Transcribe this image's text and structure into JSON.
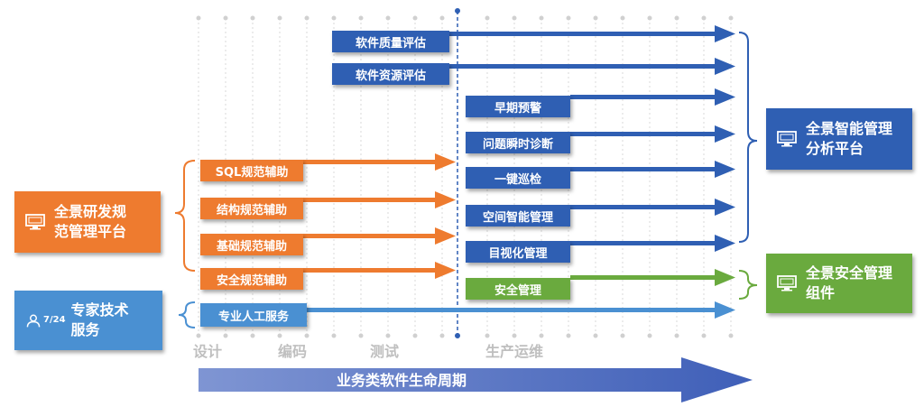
{
  "phases": [
    "设计",
    "编码",
    "测试",
    "生产运维"
  ],
  "lifecycle_label": "业务类软件生命周期",
  "top_items": [
    "软件质量评估",
    "软件资源评估"
  ],
  "ops_items": [
    "早期预警",
    "问题瞬时诊断",
    "一键巡检",
    "空间智能管理",
    "目视化管理"
  ],
  "security_item": "安全管理",
  "dev_items": [
    "SQL规范辅助",
    "结构规范辅助",
    "基础规范辅助",
    "安全规范辅助"
  ],
  "service_item": "专业人工服务",
  "left_platform": "全景研发规\n范管理平台",
  "expert_service": "专家技术\n服务",
  "expert_badge": "7/24",
  "right_platform": "全景智能管理\n分析平台",
  "right_component": "全景安全管理\n组件",
  "colors": {
    "blue": "#2f5fb3",
    "orange": "#ee7b2f",
    "green": "#6aaa3e",
    "light_blue": "#4a90d2"
  }
}
